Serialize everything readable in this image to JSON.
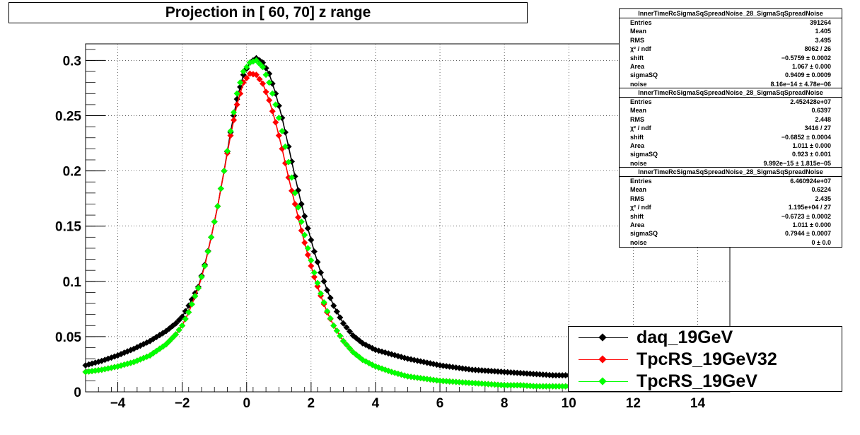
{
  "title": "Projection in [  60,  70] z range",
  "stats_boxes": [
    {
      "header": "InnerTimeRcSigmaSqSpreadNoise_28_SigmaSqSpreadNoise",
      "rows": [
        {
          "label": "Entries",
          "value": "391264"
        },
        {
          "label": "Mean",
          "value": "1.405"
        },
        {
          "label": "RMS",
          "value": "3.495"
        },
        {
          "label": "χ² / ndf",
          "value": "8062 / 26"
        },
        {
          "label": "shift",
          "value": "−0.5759 ± 0.0002"
        },
        {
          "label": "Area",
          "value": "1.067 ± 0.000"
        },
        {
          "label": "sigmaSQ",
          "value": "0.9409 ± 0.0009"
        },
        {
          "label": "noise",
          "value": "8.16e−14 ± 4.78e−06"
        }
      ]
    },
    {
      "header": "InnerTimeRcSigmaSqSpreadNoise_28_SigmaSqSpreadNoise",
      "rows": [
        {
          "label": "Entries",
          "value": "2.452428e+07"
        },
        {
          "label": "Mean",
          "value": "0.6397"
        },
        {
          "label": "RMS",
          "value": "2.448"
        },
        {
          "label": "χ² / ndf",
          "value": "3416 / 27"
        },
        {
          "label": "shift",
          "value": "−0.6852 ± 0.0004"
        },
        {
          "label": "Area",
          "value": "1.011 ± 0.000"
        },
        {
          "label": "sigmaSQ",
          "value": "0.923 ± 0.001"
        },
        {
          "label": "noise",
          "value": "9.992e−15 ± 1.815e−05"
        }
      ]
    },
    {
      "header": "InnerTimeRcSigmaSqSpreadNoise_28_SigmaSqSpreadNoise",
      "rows": [
        {
          "label": "Entries",
          "value": "6.460924e+07"
        },
        {
          "label": "Mean",
          "value": "0.6224"
        },
        {
          "label": "RMS",
          "value": "2.435"
        },
        {
          "label": "χ² / ndf",
          "value": "1.195e+04 / 27"
        },
        {
          "label": "shift",
          "value": "−0.6723 ± 0.0002"
        },
        {
          "label": "Area",
          "value": "1.011 ± 0.000"
        },
        {
          "label": "sigmaSQ",
          "value": "0.7944 ± 0.0007"
        },
        {
          "label": "noise",
          "value": "0 ± 0.0"
        }
      ]
    }
  ],
  "legend": [
    {
      "label": "daq_19GeV",
      "color": "#000000"
    },
    {
      "label": "TpcRS_19GeV32",
      "color": "#ff0000"
    },
    {
      "label": "TpcRS_19GeV",
      "color": "#00ff00"
    }
  ],
  "chart_data": {
    "type": "scatter",
    "title": "Projection in [  60,  70] z range",
    "xlim": [
      -5,
      15
    ],
    "ylim": [
      0,
      0.315
    ],
    "grid": true,
    "x_ticks": [
      -4,
      -2,
      0,
      2,
      4,
      6,
      8,
      10,
      12,
      14
    ],
    "x_tick_labels": [
      "−4",
      "−2",
      "0",
      "2",
      "4",
      "6",
      "8",
      "10",
      "12",
      "14"
    ],
    "y_ticks": [
      0,
      0.05,
      0.1,
      0.15,
      0.2,
      0.25,
      0.3
    ],
    "y_tick_labels": [
      "0",
      "0.05",
      "0.1",
      "0.15",
      "0.2",
      "0.25",
      "0.3"
    ],
    "legend_position": "bottom-right",
    "series": [
      {
        "name": "daq_19GeV",
        "color": "#000000",
        "fit_curve": true,
        "points": [
          [
            -5.0,
            0.024
          ],
          [
            -4.5,
            0.028
          ],
          [
            -4.0,
            0.033
          ],
          [
            -3.5,
            0.039
          ],
          [
            -3.0,
            0.046
          ],
          [
            -2.5,
            0.055
          ],
          [
            -2.2,
            0.062
          ],
          [
            -2.0,
            0.068
          ],
          [
            -1.8,
            0.078
          ],
          [
            -1.5,
            0.095
          ],
          [
            -1.3,
            0.115
          ],
          [
            -1.1,
            0.14
          ],
          [
            -0.9,
            0.168
          ],
          [
            -0.7,
            0.2
          ],
          [
            -0.5,
            0.235
          ],
          [
            -0.3,
            0.265
          ],
          [
            -0.1,
            0.287
          ],
          [
            0.1,
            0.298
          ],
          [
            0.3,
            0.302
          ],
          [
            0.5,
            0.298
          ],
          [
            0.7,
            0.288
          ],
          [
            0.9,
            0.27
          ],
          [
            1.1,
            0.248
          ],
          [
            1.3,
            0.222
          ],
          [
            1.5,
            0.195
          ],
          [
            1.7,
            0.17
          ],
          [
            1.9,
            0.148
          ],
          [
            2.1,
            0.127
          ],
          [
            2.3,
            0.108
          ],
          [
            2.5,
            0.092
          ],
          [
            2.7,
            0.078
          ],
          [
            3.0,
            0.062
          ],
          [
            3.3,
            0.051
          ],
          [
            3.6,
            0.044
          ],
          [
            4.0,
            0.038
          ],
          [
            4.5,
            0.034
          ],
          [
            5.0,
            0.03
          ],
          [
            5.5,
            0.027
          ],
          [
            6.0,
            0.024
          ],
          [
            6.5,
            0.022
          ],
          [
            7.0,
            0.02
          ],
          [
            7.5,
            0.019
          ],
          [
            8.0,
            0.018
          ],
          [
            8.5,
            0.017
          ],
          [
            9.0,
            0.016
          ],
          [
            9.5,
            0.015
          ],
          [
            10.0,
            0.015
          ]
        ]
      },
      {
        "name": "TpcRS_19GeV32",
        "color": "#ff0000",
        "fit_curve": true,
        "points": [
          [
            -5.0,
            0.018
          ],
          [
            -4.5,
            0.02
          ],
          [
            -4.0,
            0.023
          ],
          [
            -3.5,
            0.027
          ],
          [
            -3.0,
            0.033
          ],
          [
            -2.5,
            0.043
          ],
          [
            -2.2,
            0.052
          ],
          [
            -2.0,
            0.06
          ],
          [
            -1.8,
            0.072
          ],
          [
            -1.5,
            0.094
          ],
          [
            -1.3,
            0.114
          ],
          [
            -1.1,
            0.14
          ],
          [
            -0.9,
            0.168
          ],
          [
            -0.7,
            0.2
          ],
          [
            -0.5,
            0.232
          ],
          [
            -0.3,
            0.26
          ],
          [
            -0.1,
            0.28
          ],
          [
            0.1,
            0.288
          ],
          [
            0.3,
            0.287
          ],
          [
            0.5,
            0.279
          ],
          [
            0.7,
            0.264
          ],
          [
            0.9,
            0.244
          ],
          [
            1.1,
            0.22
          ],
          [
            1.3,
            0.194
          ],
          [
            1.5,
            0.17
          ],
          [
            1.7,
            0.146
          ],
          [
            1.9,
            0.124
          ],
          [
            2.1,
            0.104
          ],
          [
            2.3,
            0.087
          ],
          [
            2.5,
            0.072
          ],
          [
            2.7,
            0.06
          ],
          [
            3.0,
            0.046
          ],
          [
            3.3,
            0.036
          ],
          [
            3.6,
            0.029
          ],
          [
            4.0,
            0.023
          ],
          [
            4.5,
            0.018
          ],
          [
            5.0,
            0.014
          ],
          [
            5.5,
            0.012
          ],
          [
            6.0,
            0.01
          ],
          [
            6.5,
            0.009
          ],
          [
            7.0,
            0.008
          ],
          [
            7.5,
            0.007
          ],
          [
            8.0,
            0.006
          ],
          [
            8.5,
            0.006
          ],
          [
            9.0,
            0.005
          ],
          [
            9.5,
            0.005
          ],
          [
            10.0,
            0.005
          ]
        ]
      },
      {
        "name": "TpcRS_19GeV",
        "color": "#00ff00",
        "fit_curve": false,
        "points": [
          [
            -5.0,
            0.018
          ],
          [
            -4.5,
            0.02
          ],
          [
            -4.0,
            0.023
          ],
          [
            -3.5,
            0.027
          ],
          [
            -3.0,
            0.033
          ],
          [
            -2.5,
            0.043
          ],
          [
            -2.2,
            0.052
          ],
          [
            -2.0,
            0.06
          ],
          [
            -1.8,
            0.072
          ],
          [
            -1.5,
            0.094
          ],
          [
            -1.3,
            0.114
          ],
          [
            -1.1,
            0.14
          ],
          [
            -0.9,
            0.168
          ],
          [
            -0.7,
            0.2
          ],
          [
            -0.5,
            0.236
          ],
          [
            -0.3,
            0.27
          ],
          [
            -0.1,
            0.29
          ],
          [
            0.1,
            0.298
          ],
          [
            0.3,
            0.3
          ],
          [
            0.5,
            0.294
          ],
          [
            0.7,
            0.28
          ],
          [
            0.9,
            0.26
          ],
          [
            1.1,
            0.236
          ],
          [
            1.3,
            0.208
          ],
          [
            1.5,
            0.18
          ],
          [
            1.7,
            0.154
          ],
          [
            1.9,
            0.13
          ],
          [
            2.1,
            0.108
          ],
          [
            2.3,
            0.089
          ],
          [
            2.5,
            0.073
          ],
          [
            2.7,
            0.06
          ],
          [
            3.0,
            0.046
          ],
          [
            3.3,
            0.036
          ],
          [
            3.6,
            0.029
          ],
          [
            4.0,
            0.023
          ],
          [
            4.5,
            0.018
          ],
          [
            5.0,
            0.014
          ],
          [
            5.5,
            0.012
          ],
          [
            6.0,
            0.01
          ],
          [
            6.5,
            0.009
          ],
          [
            7.0,
            0.008
          ],
          [
            7.5,
            0.007
          ],
          [
            8.0,
            0.006
          ],
          [
            8.5,
            0.006
          ],
          [
            9.0,
            0.005
          ],
          [
            9.5,
            0.005
          ],
          [
            10.0,
            0.005
          ]
        ]
      }
    ]
  }
}
